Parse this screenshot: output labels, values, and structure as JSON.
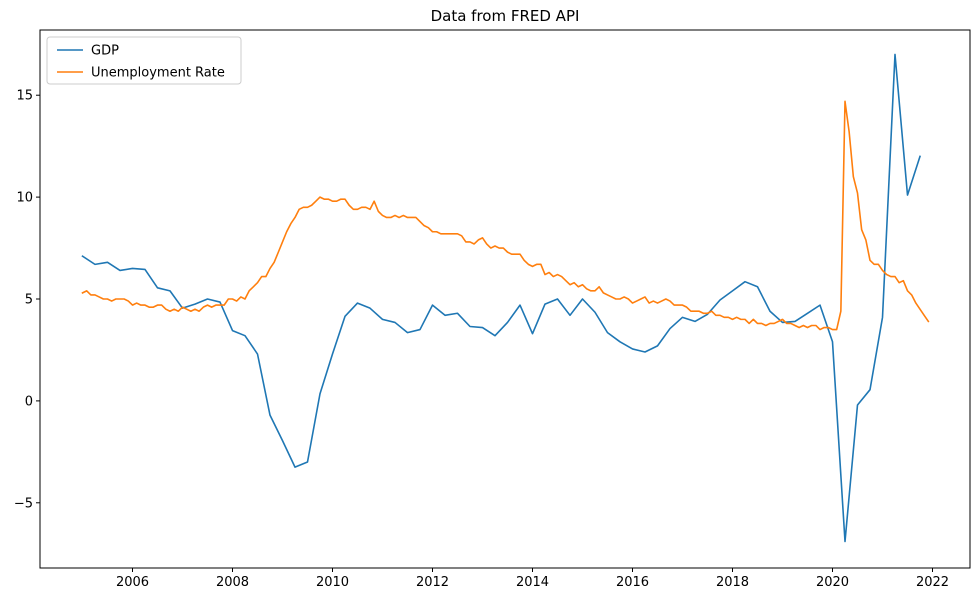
{
  "chart_data": {
    "type": "line",
    "title": "Data from FRED API",
    "xlabel": "",
    "ylabel": "",
    "xlim": [
      2004.15,
      2022.75
    ],
    "ylim": [
      -8.2,
      18.2
    ],
    "x_ticks": [
      2006,
      2008,
      2010,
      2012,
      2014,
      2016,
      2018,
      2020,
      2022
    ],
    "y_ticks": [
      -5,
      0,
      5,
      10,
      15
    ],
    "grid": false,
    "legend_position": "upper left",
    "series": [
      {
        "name": "GDP",
        "color": "#1f77b4",
        "x": [
          2005.0,
          2005.25,
          2005.5,
          2005.75,
          2006.0,
          2006.25,
          2006.5,
          2006.75,
          2007.0,
          2007.25,
          2007.5,
          2007.75,
          2008.0,
          2008.25,
          2008.5,
          2008.75,
          2009.0,
          2009.25,
          2009.5,
          2009.75,
          2010.0,
          2010.25,
          2010.5,
          2010.75,
          2011.0,
          2011.25,
          2011.5,
          2011.75,
          2012.0,
          2012.25,
          2012.5,
          2012.75,
          2013.0,
          2013.25,
          2013.5,
          2013.75,
          2014.0,
          2014.25,
          2014.5,
          2014.75,
          2015.0,
          2015.25,
          2015.5,
          2015.75,
          2016.0,
          2016.25,
          2016.5,
          2016.75,
          2017.0,
          2017.25,
          2017.5,
          2017.75,
          2018.0,
          2018.25,
          2018.5,
          2018.75,
          2019.0,
          2019.25,
          2019.5,
          2019.75,
          2020.0,
          2020.25,
          2020.5,
          2020.75,
          2021.0,
          2021.25,
          2021.5,
          2021.75
        ],
        "y": [
          7.1,
          6.7,
          6.8,
          6.4,
          6.5,
          6.45,
          5.55,
          5.4,
          4.55,
          4.75,
          5.0,
          4.85,
          3.45,
          3.2,
          2.3,
          -0.7,
          -1.95,
          -3.25,
          -3.0,
          0.35,
          2.3,
          4.15,
          4.8,
          4.55,
          4.0,
          3.85,
          3.35,
          3.5,
          4.7,
          4.2,
          4.3,
          3.65,
          3.6,
          3.2,
          3.85,
          4.7,
          3.3,
          4.75,
          5.0,
          4.2,
          5.0,
          4.35,
          3.35,
          2.9,
          2.55,
          2.4,
          2.7,
          3.55,
          4.1,
          3.9,
          4.25,
          4.95,
          5.4,
          5.85,
          5.6,
          4.4,
          3.85,
          3.9,
          4.3,
          4.7,
          2.9,
          -6.9,
          -0.2,
          0.55,
          4.1,
          17.0,
          10.1,
          12.0
        ]
      },
      {
        "name": "Unemployment Rate",
        "color": "#ff7f0e",
        "x": [
          2005.0,
          2005.083,
          2005.167,
          2005.25,
          2005.333,
          2005.417,
          2005.5,
          2005.583,
          2005.667,
          2005.75,
          2005.833,
          2005.917,
          2006.0,
          2006.083,
          2006.167,
          2006.25,
          2006.333,
          2006.417,
          2006.5,
          2006.583,
          2006.667,
          2006.75,
          2006.833,
          2006.917,
          2007.0,
          2007.083,
          2007.167,
          2007.25,
          2007.333,
          2007.417,
          2007.5,
          2007.583,
          2007.667,
          2007.75,
          2007.833,
          2007.917,
          2008.0,
          2008.083,
          2008.167,
          2008.25,
          2008.333,
          2008.417,
          2008.5,
          2008.583,
          2008.667,
          2008.75,
          2008.833,
          2008.917,
          2009.0,
          2009.083,
          2009.167,
          2009.25,
          2009.333,
          2009.417,
          2009.5,
          2009.583,
          2009.667,
          2009.75,
          2009.833,
          2009.917,
          2010.0,
          2010.083,
          2010.167,
          2010.25,
          2010.333,
          2010.417,
          2010.5,
          2010.583,
          2010.667,
          2010.75,
          2010.833,
          2010.917,
          2011.0,
          2011.083,
          2011.167,
          2011.25,
          2011.333,
          2011.417,
          2011.5,
          2011.583,
          2011.667,
          2011.75,
          2011.833,
          2011.917,
          2012.0,
          2012.083,
          2012.167,
          2012.25,
          2012.333,
          2012.417,
          2012.5,
          2012.583,
          2012.667,
          2012.75,
          2012.833,
          2012.917,
          2013.0,
          2013.083,
          2013.167,
          2013.25,
          2013.333,
          2013.417,
          2013.5,
          2013.583,
          2013.667,
          2013.75,
          2013.833,
          2013.917,
          2014.0,
          2014.083,
          2014.167,
          2014.25,
          2014.333,
          2014.417,
          2014.5,
          2014.583,
          2014.667,
          2014.75,
          2014.833,
          2014.917,
          2015.0,
          2015.083,
          2015.167,
          2015.25,
          2015.333,
          2015.417,
          2015.5,
          2015.583,
          2015.667,
          2015.75,
          2015.833,
          2015.917,
          2016.0,
          2016.083,
          2016.167,
          2016.25,
          2016.333,
          2016.417,
          2016.5,
          2016.583,
          2016.667,
          2016.75,
          2016.833,
          2016.917,
          2017.0,
          2017.083,
          2017.167,
          2017.25,
          2017.333,
          2017.417,
          2017.5,
          2017.583,
          2017.667,
          2017.75,
          2017.833,
          2017.917,
          2018.0,
          2018.083,
          2018.167,
          2018.25,
          2018.333,
          2018.417,
          2018.5,
          2018.583,
          2018.667,
          2018.75,
          2018.833,
          2018.917,
          2019.0,
          2019.083,
          2019.167,
          2019.25,
          2019.333,
          2019.417,
          2019.5,
          2019.583,
          2019.667,
          2019.75,
          2019.833,
          2019.917,
          2020.0,
          2020.083,
          2020.167,
          2020.25,
          2020.333,
          2020.417,
          2020.5,
          2020.583,
          2020.667,
          2020.75,
          2020.833,
          2020.917,
          2021.0,
          2021.083,
          2021.167,
          2021.25,
          2021.333,
          2021.417,
          2021.5,
          2021.583,
          2021.667,
          2021.75,
          2021.833,
          2021.917
        ],
        "y": [
          5.3,
          5.4,
          5.2,
          5.2,
          5.1,
          5.0,
          5.0,
          4.9,
          5.0,
          5.0,
          5.0,
          4.9,
          4.7,
          4.8,
          4.7,
          4.7,
          4.6,
          4.6,
          4.7,
          4.7,
          4.5,
          4.4,
          4.5,
          4.4,
          4.6,
          4.5,
          4.4,
          4.5,
          4.4,
          4.6,
          4.7,
          4.6,
          4.7,
          4.7,
          4.7,
          5.0,
          5.0,
          4.9,
          5.1,
          5.0,
          5.4,
          5.6,
          5.8,
          6.1,
          6.1,
          6.5,
          6.8,
          7.3,
          7.8,
          8.3,
          8.7,
          9.0,
          9.4,
          9.5,
          9.5,
          9.6,
          9.8,
          10.0,
          9.9,
          9.9,
          9.8,
          9.8,
          9.9,
          9.9,
          9.6,
          9.4,
          9.4,
          9.5,
          9.5,
          9.4,
          9.8,
          9.3,
          9.1,
          9.0,
          9.0,
          9.1,
          9.0,
          9.1,
          9.0,
          9.0,
          9.0,
          8.8,
          8.6,
          8.5,
          8.3,
          8.3,
          8.2,
          8.2,
          8.2,
          8.2,
          8.2,
          8.1,
          7.8,
          7.8,
          7.7,
          7.9,
          8.0,
          7.7,
          7.5,
          7.6,
          7.5,
          7.5,
          7.3,
          7.2,
          7.2,
          7.2,
          6.9,
          6.7,
          6.6,
          6.7,
          6.7,
          6.2,
          6.3,
          6.1,
          6.2,
          6.1,
          5.9,
          5.7,
          5.8,
          5.6,
          5.7,
          5.5,
          5.4,
          5.4,
          5.6,
          5.3,
          5.2,
          5.1,
          5.0,
          5.0,
          5.1,
          5.0,
          4.8,
          4.9,
          5.0,
          5.1,
          4.8,
          4.9,
          4.8,
          4.9,
          5.0,
          4.9,
          4.7,
          4.7,
          4.7,
          4.6,
          4.4,
          4.4,
          4.4,
          4.3,
          4.3,
          4.4,
          4.2,
          4.2,
          4.1,
          4.1,
          4.0,
          4.1,
          4.0,
          4.0,
          3.8,
          4.0,
          3.8,
          3.8,
          3.7,
          3.8,
          3.8,
          3.9,
          4.0,
          3.8,
          3.8,
          3.7,
          3.6,
          3.7,
          3.6,
          3.7,
          3.7,
          3.5,
          3.6,
          3.6,
          3.5,
          3.5,
          4.4,
          14.7,
          13.2,
          11.0,
          10.2,
          8.4,
          7.9,
          6.9,
          6.7,
          6.7,
          6.4,
          6.2,
          6.1,
          6.1,
          5.8,
          5.9,
          5.4,
          5.2,
          4.8,
          4.5,
          4.2,
          3.9
        ]
      }
    ]
  }
}
